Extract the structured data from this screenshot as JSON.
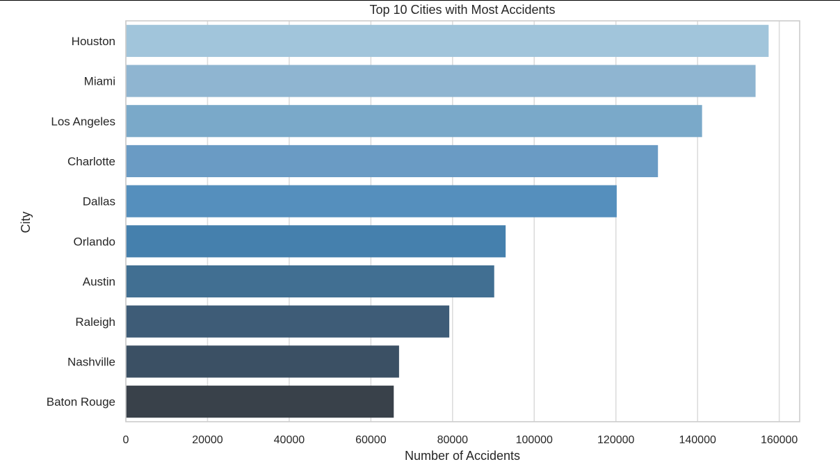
{
  "chart_data": {
    "type": "bar",
    "orientation": "horizontal",
    "title": "Top 10 Cities with Most Accidents",
    "xlabel": "Number of Accidents",
    "ylabel": "City",
    "xlim": [
      0,
      165000
    ],
    "xticks": [
      0,
      20000,
      40000,
      60000,
      80000,
      100000,
      120000,
      140000,
      160000
    ],
    "grid": true,
    "legend": "none",
    "categories": [
      "Houston",
      "Miami",
      "Los Angeles",
      "Charlotte",
      "Dallas",
      "Orlando",
      "Austin",
      "Raleigh",
      "Nashville",
      "Baton Rouge"
    ],
    "values": [
      157400,
      154200,
      141100,
      130300,
      120200,
      93000,
      90200,
      79200,
      66900,
      65600
    ],
    "colors": [
      "#a1c5db",
      "#8fb5d1",
      "#7aa9c9",
      "#6a9bc4",
      "#558fbd",
      "#4580ad",
      "#416f92",
      "#3e5c77",
      "#3b5064",
      "#39414a"
    ]
  }
}
